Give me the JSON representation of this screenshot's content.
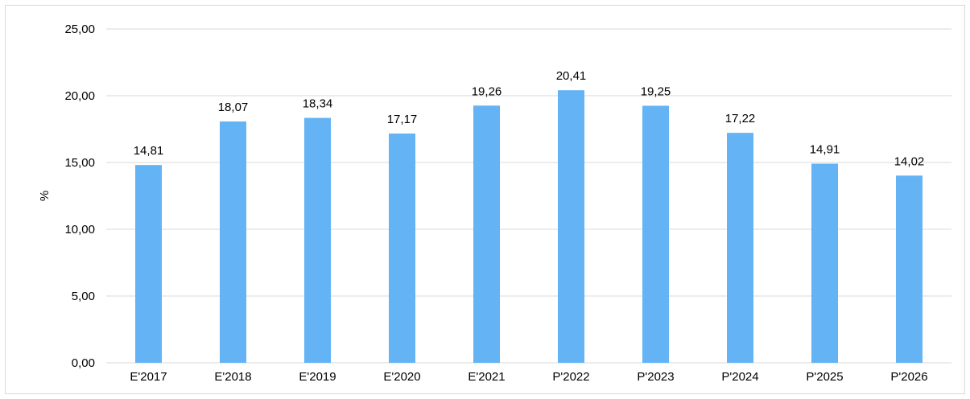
{
  "chart_data": {
    "type": "bar",
    "categories": [
      "E'2017",
      "E'2018",
      "E'2019",
      "E'2020",
      "E'2021",
      "P'2022",
      "P'2023",
      "P'2024",
      "P'2025",
      "P'2026"
    ],
    "values": [
      14.81,
      18.07,
      18.34,
      17.17,
      19.26,
      20.41,
      19.25,
      17.22,
      14.91,
      14.02
    ],
    "value_labels": [
      "14,81",
      "18,07",
      "18,34",
      "17,17",
      "19,26",
      "20,41",
      "19,25",
      "17,22",
      "14,91",
      "14,02"
    ],
    "title": "",
    "xlabel": "",
    "ylabel": "%",
    "ylim": [
      0,
      25
    ],
    "yticks": [
      0,
      5,
      10,
      15,
      20,
      25
    ],
    "ytick_labels": [
      "0,00",
      "5,00",
      "10,00",
      "15,00",
      "20,00",
      "25,00"
    ],
    "grid": true,
    "legend": "none",
    "bar_color": "#63b3f5",
    "grid_color": "#d9d9d9"
  }
}
